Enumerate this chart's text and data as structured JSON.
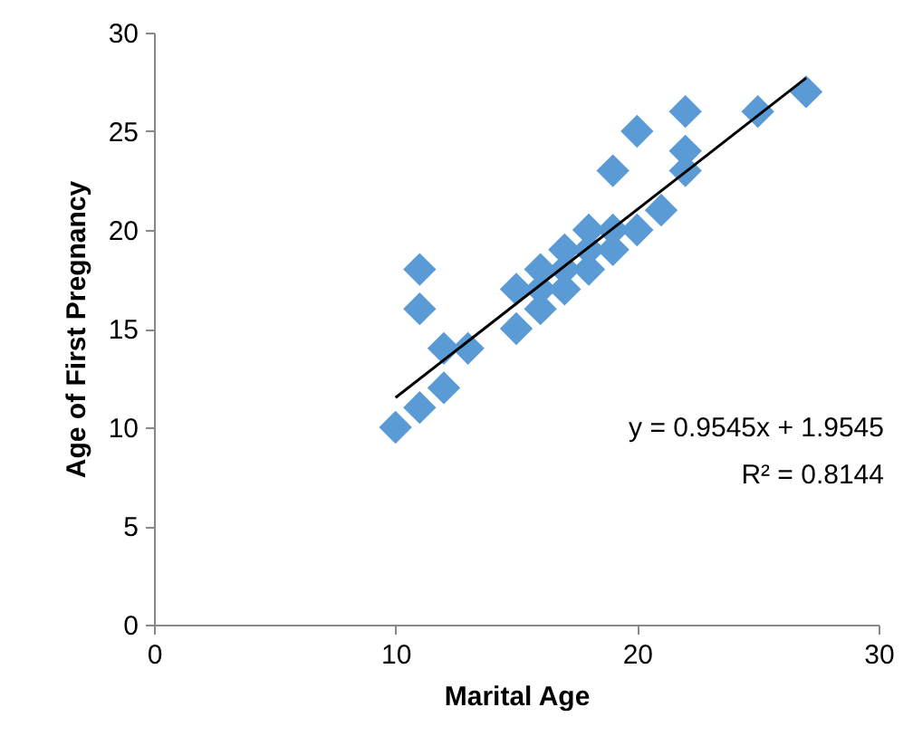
{
  "chart_data": {
    "type": "scatter",
    "xlabel": "Marital Age",
    "ylabel": "Age of First Pregnancy",
    "x": [
      10,
      11,
      11,
      11,
      12,
      12,
      13,
      15,
      15,
      16,
      16,
      16,
      17,
      17,
      17,
      18,
      18,
      18,
      19,
      19,
      19,
      20,
      20,
      21,
      22,
      22,
      22,
      25,
      27
    ],
    "series": [
      {
        "type": "scatter",
        "color": "#5b9bd5",
        "marker": "diamond",
        "values": [
          10,
          11,
          16,
          18,
          12,
          14,
          14,
          15,
          17,
          16,
          17,
          18,
          17,
          18,
          19,
          18,
          19,
          20,
          19,
          20,
          23,
          20,
          25,
          21,
          23,
          24,
          26,
          26,
          27
        ]
      },
      {
        "type": "line",
        "color": "#000000",
        "x": [
          10,
          27
        ],
        "values": [
          11.5,
          27.7
        ]
      }
    ],
    "xlim": [
      0,
      30
    ],
    "ylim": [
      0,
      30
    ],
    "xticks": [
      0,
      10,
      20,
      30
    ],
    "yticks": [
      0,
      5,
      10,
      15,
      20,
      25,
      30
    ],
    "grid": false,
    "legend": false,
    "annotations": [
      "y = 0.9545x + 1.9545",
      "R² = 0.8144"
    ]
  }
}
